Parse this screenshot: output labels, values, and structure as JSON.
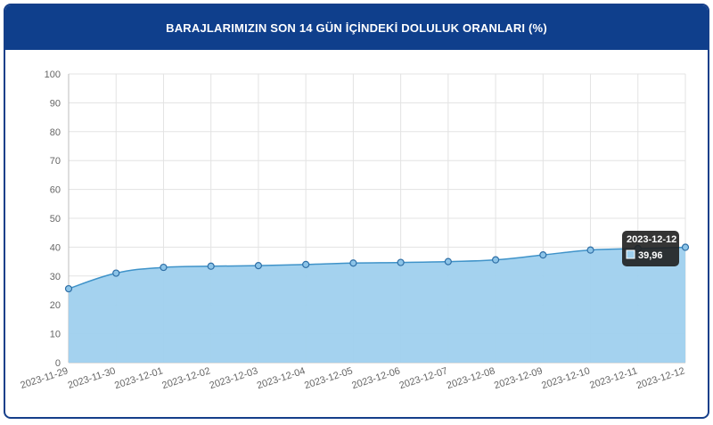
{
  "header": {
    "title": "BARAJLARIMIZIN SON 14 GÜN İÇİNDEKİ DOLULUK ORANLARI (%)"
  },
  "colors": {
    "header_bg": "#0f3f8c",
    "area_fill": "#9fd0ee",
    "line": "#3f93c9",
    "point_fill": "#8cc4e8",
    "point_stroke": "#2f6fa6",
    "grid": "#e3e3e3",
    "tooltip_bg": "#1f1f1f"
  },
  "chart_data": {
    "type": "area",
    "title": "BARAJLARIMIZIN SON 14 GÜN İÇİNDEKİ DOLULUK ORANLARI (%)",
    "xlabel": "",
    "ylabel": "",
    "ylim": [
      0,
      100
    ],
    "yticks": [
      "0",
      "10",
      "20",
      "30",
      "40",
      "50",
      "60",
      "70",
      "80",
      "90",
      "100"
    ],
    "categories": [
      "2023-11-29",
      "2023-11-30",
      "2023-12-01",
      "2023-12-02",
      "2023-12-03",
      "2023-12-04",
      "2023-12-05",
      "2023-12-06",
      "2023-12-07",
      "2023-12-08",
      "2023-12-09",
      "2023-12-10",
      "2023-12-11",
      "2023-12-12"
    ],
    "series": [
      {
        "values": [
          25.6,
          31.0,
          33.0,
          33.4,
          33.6,
          34.0,
          34.5,
          34.7,
          35.0,
          35.6,
          37.3,
          39.0,
          39.5,
          39.96
        ]
      }
    ],
    "grid": true,
    "tooltip": {
      "title": "2023-12-12",
      "value": "39,96"
    }
  }
}
